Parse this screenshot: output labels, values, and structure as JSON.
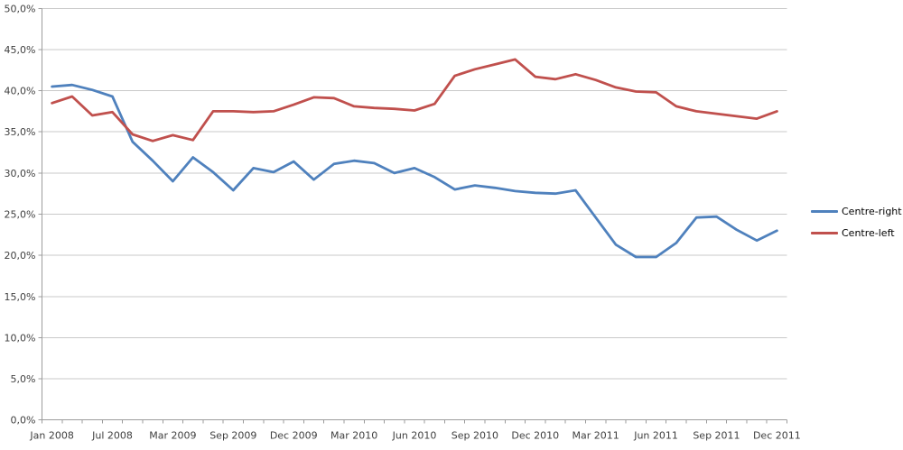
{
  "chart_data": {
    "type": "line",
    "title": "",
    "xlabel": "",
    "ylabel": "",
    "n_points": 37,
    "x_tick_labels": [
      "Jan 2008",
      "Jul 2008",
      "Mar 2009",
      "Sep 2009",
      "Dec 2009",
      "Mar 2010",
      "Jun 2010",
      "Sep 2010",
      "Dec 2010",
      "Mar 2011",
      "Jun 2011",
      "Sep 2011",
      "Dec 2011"
    ],
    "x_label_every_n_points": 3,
    "y_axis": {
      "min": 0,
      "max": 50,
      "step": 5,
      "tick_labels": [
        "0,0%",
        "5,0%",
        "10,0%",
        "15,0%",
        "20,0%",
        "25,0%",
        "30,0%",
        "35,0%",
        "40,0%",
        "45,0%",
        "50,0%"
      ]
    },
    "grid": true,
    "legend_position": "right",
    "series": [
      {
        "name": "Centre-right",
        "color": "#4F81BD",
        "values": [
          40.5,
          40.7,
          40.1,
          39.3,
          33.8,
          31.5,
          29.0,
          31.9,
          30.1,
          27.9,
          30.6,
          30.1,
          31.4,
          29.2,
          31.1,
          31.5,
          31.2,
          30.0,
          30.6,
          29.5,
          28.0,
          28.5,
          28.2,
          27.8,
          27.6,
          27.5,
          27.9,
          24.6,
          21.3,
          19.8,
          19.8,
          21.5,
          24.6,
          24.7,
          23.1,
          21.8,
          23.0
        ]
      },
      {
        "name": "Centre-left",
        "color": "#C0504D",
        "values": [
          38.5,
          39.3,
          37.0,
          37.4,
          34.7,
          33.9,
          34.6,
          34.0,
          37.5,
          37.5,
          37.4,
          37.5,
          38.3,
          39.2,
          39.1,
          38.1,
          37.9,
          37.8,
          37.6,
          38.4,
          41.8,
          42.6,
          43.2,
          43.8,
          41.7,
          41.4,
          42.0,
          41.3,
          40.4,
          39.9,
          39.8,
          38.1,
          37.5,
          37.2,
          36.9,
          36.6,
          37.5
        ]
      }
    ],
    "style": {
      "gridline_color": "#c9c9c9",
      "axis_color": "#9c9c9c",
      "tick_text_color": "#3f3f3f",
      "line_width": 2.8,
      "background": "#ffffff"
    }
  }
}
